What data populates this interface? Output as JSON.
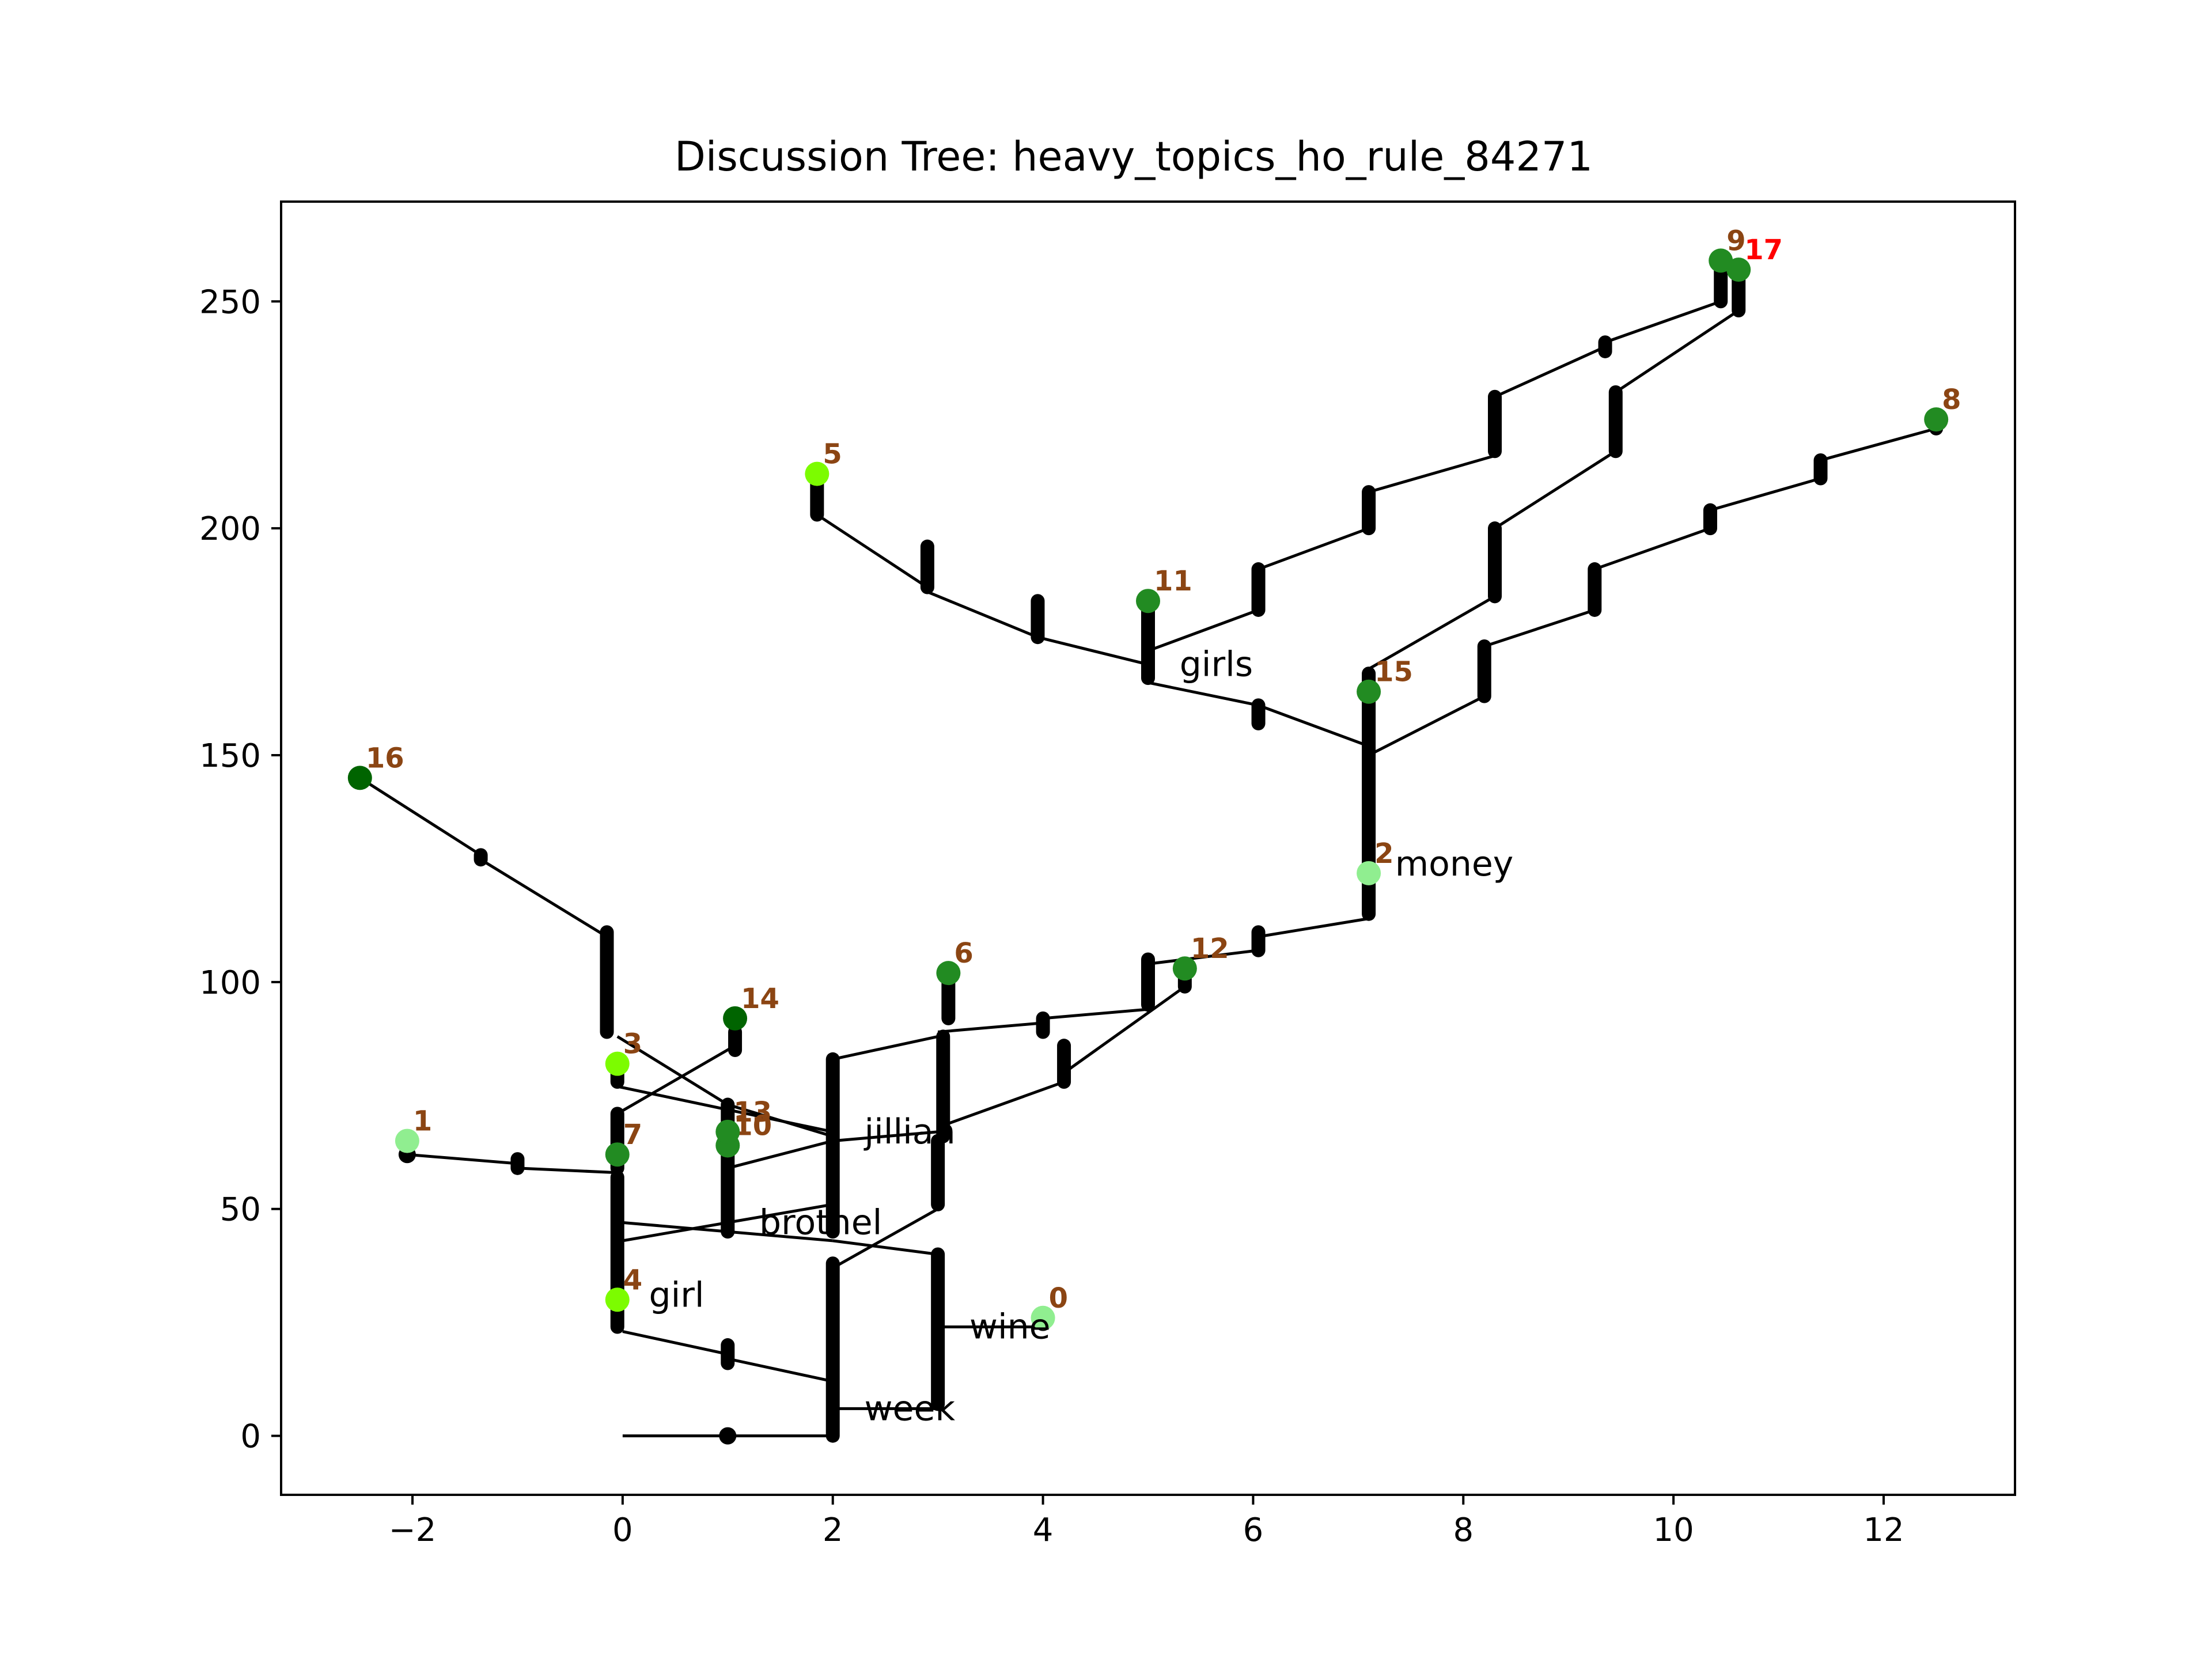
{
  "chart_data": {
    "type": "scatter",
    "title": "Discussion Tree: heavy_topics_ho_rule_84271",
    "xlabel": "",
    "ylabel": "",
    "xlim": [
      -3.25,
      13.25
    ],
    "ylim": [
      -13,
      272
    ],
    "xticks": [
      -2,
      0,
      2,
      4,
      6,
      8,
      10,
      12
    ],
    "xtick_labels": [
      "−2",
      "0",
      "2",
      "4",
      "6",
      "8",
      "10",
      "12"
    ],
    "yticks": [
      0,
      50,
      100,
      150,
      200,
      250
    ],
    "ytick_labels": [
      "0",
      "50",
      "100",
      "150",
      "200",
      "250"
    ],
    "grid": false,
    "colors": {
      "edge": "#000000",
      "label_default": "#8b4513",
      "label_hot": "#ff0000",
      "light_green": "#90ee90",
      "lawn_green": "#7cfc00",
      "forest_green": "#228b22",
      "dark_green": "#006400"
    },
    "nodes": [
      {
        "id": "0",
        "x": 4.0,
        "y": 26,
        "color": "#90ee90"
      },
      {
        "id": "1",
        "x": -2.05,
        "y": 65,
        "color": "#90ee90"
      },
      {
        "id": "2",
        "x": 7.1,
        "y": 124,
        "color": "#90ee90"
      },
      {
        "id": "3",
        "x": -0.05,
        "y": 82,
        "color": "#7cfc00"
      },
      {
        "id": "4",
        "x": -0.05,
        "y": 30,
        "color": "#7cfc00"
      },
      {
        "id": "5",
        "x": 1.85,
        "y": 212,
        "color": "#7cfc00"
      },
      {
        "id": "6",
        "x": 3.1,
        "y": 102,
        "color": "#228b22"
      },
      {
        "id": "7",
        "x": -0.05,
        "y": 62,
        "color": "#228b22"
      },
      {
        "id": "8",
        "x": 12.5,
        "y": 224,
        "color": "#228b22"
      },
      {
        "id": "9",
        "x": 10.45,
        "y": 259,
        "color": "#228b22"
      },
      {
        "id": "10",
        "x": 1.0,
        "y": 64,
        "color": "#228b22"
      },
      {
        "id": "11",
        "x": 5.0,
        "y": 184,
        "color": "#228b22"
      },
      {
        "id": "12",
        "x": 5.35,
        "y": 103,
        "color": "#228b22"
      },
      {
        "id": "13",
        "x": 1.0,
        "y": 67,
        "color": "#228b22"
      },
      {
        "id": "14",
        "x": 1.07,
        "y": 92,
        "color": "#006400"
      },
      {
        "id": "15",
        "x": 7.1,
        "y": 164,
        "color": "#228b22"
      },
      {
        "id": "16",
        "x": -2.5,
        "y": 145,
        "color": "#006400"
      },
      {
        "id": "17",
        "x": 10.62,
        "y": 257,
        "color": "#228b22",
        "label_hot": true
      }
    ],
    "annotations": [
      {
        "text": "money",
        "x": 7.35,
        "y": 126
      },
      {
        "text": "girls",
        "x": 5.3,
        "y": 170
      },
      {
        "text": "jillian",
        "x": 2.3,
        "y": 67
      },
      {
        "text": "brothel",
        "x": 1.3,
        "y": 47
      },
      {
        "text": "girl",
        "x": 0.25,
        "y": 31
      },
      {
        "text": "wine",
        "x": 3.3,
        "y": 24
      },
      {
        "text": "week",
        "x": 2.3,
        "y": 6
      }
    ],
    "edges": [
      [
        [
          0,
          0
        ],
        [
          2,
          0
        ]
      ],
      [
        [
          2,
          6
        ],
        [
          3,
          6
        ]
      ],
      [
        [
          3,
          24
        ],
        [
          4,
          24
        ]
      ],
      [
        [
          0,
          23
        ],
        [
          1,
          18
        ]
      ],
      [
        [
          1,
          17
        ],
        [
          2,
          12
        ]
      ],
      [
        [
          0,
          47
        ],
        [
          2,
          43
        ]
      ],
      [
        [
          2,
          43
        ],
        [
          3,
          40
        ]
      ],
      [
        [
          0,
          43
        ],
        [
          2,
          51
        ]
      ],
      [
        [
          2,
          37
        ],
        [
          3,
          50
        ]
      ],
      [
        [
          -2.05,
          62
        ],
        [
          -1,
          60
        ]
      ],
      [
        [
          -1,
          59
        ],
        [
          -0.05,
          58
        ]
      ],
      [
        [
          -0.05,
          71
        ],
        [
          1.07,
          86
        ]
      ],
      [
        [
          -0.05,
          77
        ],
        [
          2,
          67
        ]
      ],
      [
        [
          -0.05,
          88
        ],
        [
          1,
          73
        ]
      ],
      [
        [
          -2.5,
          145
        ],
        [
          -1.35,
          128
        ]
      ],
      [
        [
          -1.35,
          127
        ],
        [
          -0.15,
          110
        ]
      ],
      [
        [
          1,
          59
        ],
        [
          2,
          65
        ]
      ],
      [
        [
          2,
          65
        ],
        [
          3,
          67
        ]
      ],
      [
        [
          1,
          73
        ],
        [
          2,
          66
        ]
      ],
      [
        [
          2,
          83
        ],
        [
          3,
          88
        ]
      ],
      [
        [
          3,
          89
        ],
        [
          4,
          91
        ]
      ],
      [
        [
          4,
          92
        ],
        [
          5,
          94
        ]
      ],
      [
        [
          3,
          68
        ],
        [
          4.2,
          78
        ]
      ],
      [
        [
          4.2,
          80
        ],
        [
          5.35,
          99
        ]
      ],
      [
        [
          5,
          104
        ],
        [
          6.05,
          107
        ]
      ],
      [
        [
          6.05,
          110
        ],
        [
          7.1,
          114
        ]
      ],
      [
        [
          7.1,
          152
        ],
        [
          6.05,
          161
        ]
      ],
      [
        [
          6.05,
          161
        ],
        [
          5,
          166
        ]
      ],
      [
        [
          5,
          170
        ],
        [
          3.95,
          176
        ]
      ],
      [
        [
          3.95,
          176
        ],
        [
          2.9,
          186
        ]
      ],
      [
        [
          2.9,
          187
        ],
        [
          1.85,
          203
        ]
      ],
      [
        [
          5,
          173
        ],
        [
          6.05,
          182
        ]
      ],
      [
        [
          6.05,
          191
        ],
        [
          7.1,
          200
        ]
      ],
      [
        [
          7.1,
          208
        ],
        [
          8.3,
          216
        ]
      ],
      [
        [
          8.3,
          229
        ],
        [
          9.35,
          240
        ]
      ],
      [
        [
          9.35,
          241
        ],
        [
          10.45,
          250
        ]
      ],
      [
        [
          7.1,
          169
        ],
        [
          8.3,
          185
        ]
      ],
      [
        [
          8.3,
          200
        ],
        [
          9.45,
          217
        ]
      ],
      [
        [
          9.45,
          230
        ],
        [
          10.62,
          248
        ]
      ],
      [
        [
          7.1,
          150
        ],
        [
          8.2,
          163
        ]
      ],
      [
        [
          8.2,
          174
        ],
        [
          9.25,
          182
        ]
      ],
      [
        [
          9.25,
          191
        ],
        [
          10.35,
          200
        ]
      ],
      [
        [
          10.35,
          204
        ],
        [
          11.4,
          211
        ]
      ],
      [
        [
          11.4,
          215
        ],
        [
          12.5,
          222
        ]
      ]
    ],
    "bars": [
      [
        2,
        0,
        38
      ],
      [
        3,
        7,
        40
      ],
      [
        -0.05,
        24,
        57
      ],
      [
        -0.05,
        59,
        71
      ],
      [
        1,
        45,
        73
      ],
      [
        2,
        45,
        83
      ],
      [
        3,
        51,
        65
      ],
      [
        3.05,
        66,
        88
      ],
      [
        -0.15,
        89,
        111
      ],
      [
        1.07,
        85,
        89
      ],
      [
        1,
        16,
        20
      ],
      [
        -1,
        59,
        61
      ],
      [
        -0.05,
        78,
        81
      ],
      [
        3.1,
        92,
        101
      ],
      [
        4.2,
        78,
        86
      ],
      [
        4,
        89,
        92
      ],
      [
        5,
        95,
        105
      ],
      [
        5.35,
        99,
        101
      ],
      [
        6.05,
        107,
        111
      ],
      [
        7.1,
        115,
        168
      ],
      [
        6.05,
        157,
        161
      ],
      [
        5,
        167,
        182
      ],
      [
        3.95,
        176,
        184
      ],
      [
        2.9,
        187,
        196
      ],
      [
        1.85,
        203,
        211
      ],
      [
        6.05,
        182,
        191
      ],
      [
        7.1,
        200,
        208
      ],
      [
        8.3,
        217,
        229
      ],
      [
        9.35,
        239,
        241
      ],
      [
        10.45,
        250,
        259
      ],
      [
        8.3,
        185,
        200
      ],
      [
        9.45,
        217,
        230
      ],
      [
        10.62,
        248,
        257
      ],
      [
        8.2,
        163,
        174
      ],
      [
        9.25,
        182,
        191
      ],
      [
        10.35,
        200,
        204
      ],
      [
        11.4,
        211,
        215
      ],
      [
        12.5,
        222,
        223
      ],
      [
        -1.35,
        127,
        128
      ]
    ],
    "dots": [
      [
        1,
        0
      ],
      [
        -2.05,
        62
      ],
      [
        4,
        25
      ]
    ]
  }
}
